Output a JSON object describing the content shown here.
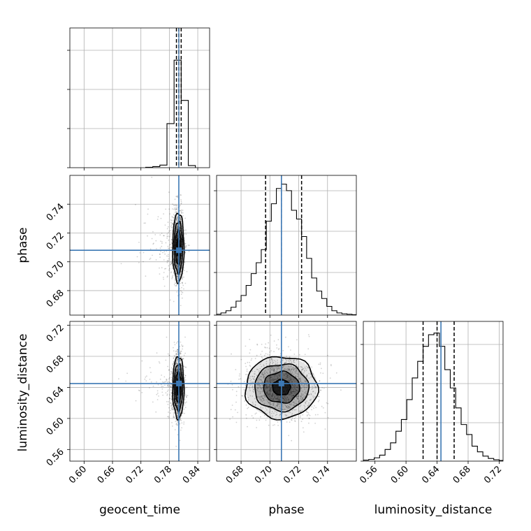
{
  "chart_data": {
    "type": "corner",
    "title": "",
    "grid": true,
    "parameters": [
      {
        "name": "geocent_time",
        "label": "geocent_time",
        "range": [
          0.57,
          0.865
        ],
        "ticks": [
          0.6,
          0.66,
          0.72,
          0.78,
          0.84
        ],
        "tick_labels": [
          "0.60",
          "0.66",
          "0.72",
          "0.78",
          "0.84"
        ]
      },
      {
        "name": "phase",
        "label": "phase",
        "range": [
          0.663,
          0.76
        ],
        "ticks": [
          0.68,
          0.7,
          0.72,
          0.74
        ],
        "tick_labels": [
          "0.68",
          "0.70",
          "0.72",
          "0.74"
        ]
      },
      {
        "name": "luminosity_distance",
        "label": "luminosity_distance",
        "range": [
          0.545,
          0.725
        ],
        "ticks": [
          0.56,
          0.6,
          0.64,
          0.68,
          0.72
        ],
        "tick_labels": [
          "0.56",
          "0.60",
          "0.64",
          "0.68",
          "0.72"
        ]
      }
    ],
    "truths": [
      0.8,
      0.708,
      0.645
    ],
    "truth_color": "#3c78b4",
    "quantiles": [
      [
        0.795,
        0.8,
        0.805
      ],
      [
        0.697,
        0.708,
        0.722
      ],
      [
        0.622,
        0.64,
        0.662
      ]
    ],
    "histograms": [
      {
        "param": "geocent_time",
        "bin_edges": [
          0.73,
          0.745,
          0.76,
          0.775,
          0.79,
          0.805,
          0.82,
          0.835
        ],
        "counts": [
          2,
          5,
          12,
          205,
          500,
          313,
          10
        ],
        "ymax": 650
      },
      {
        "param": "phase",
        "bin_edges": [
          0.663,
          0.666,
          0.6695,
          0.673,
          0.6765,
          0.68,
          0.6835,
          0.687,
          0.6905,
          0.694,
          0.6975,
          0.701,
          0.7045,
          0.708,
          0.7115,
          0.715,
          0.7185,
          0.722,
          0.7255,
          0.729,
          0.7325,
          0.736,
          0.7395,
          0.743,
          0.7465,
          0.75,
          0.7535,
          0.757,
          0.76
        ],
        "counts": [
          2,
          5,
          10,
          18,
          32,
          45,
          68,
          95,
          120,
          150,
          215,
          255,
          290,
          300,
          285,
          240,
          220,
          180,
          130,
          85,
          55,
          38,
          20,
          10,
          5,
          3,
          2,
          1
        ],
        "ymax": 320
      },
      {
        "param": "luminosity_distance",
        "bin_edges": [
          0.545,
          0.552,
          0.559,
          0.566,
          0.573,
          0.58,
          0.587,
          0.594,
          0.601,
          0.608,
          0.615,
          0.622,
          0.629,
          0.636,
          0.643,
          0.65,
          0.657,
          0.664,
          0.671,
          0.678,
          0.685,
          0.692,
          0.699,
          0.706,
          0.713,
          0.72,
          0.725
        ],
        "counts": [
          3,
          5,
          10,
          18,
          35,
          55,
          90,
          125,
          185,
          250,
          300,
          345,
          380,
          385,
          345,
          275,
          220,
          160,
          110,
          80,
          45,
          28,
          15,
          8,
          4,
          2
        ],
        "ymax": 420
      }
    ],
    "contours_2d": [
      {
        "x": "geocent_time",
        "y": "phase",
        "center": [
          0.799,
          0.71
        ],
        "sigma": [
          0.006,
          0.012
        ]
      },
      {
        "x": "geocent_time",
        "y": "luminosity_distance",
        "center": [
          0.799,
          0.64
        ],
        "sigma": [
          0.006,
          0.02
        ]
      },
      {
        "x": "phase",
        "y": "luminosity_distance",
        "center": [
          0.708,
          0.64
        ],
        "sigma": [
          0.0125,
          0.02
        ]
      }
    ]
  }
}
